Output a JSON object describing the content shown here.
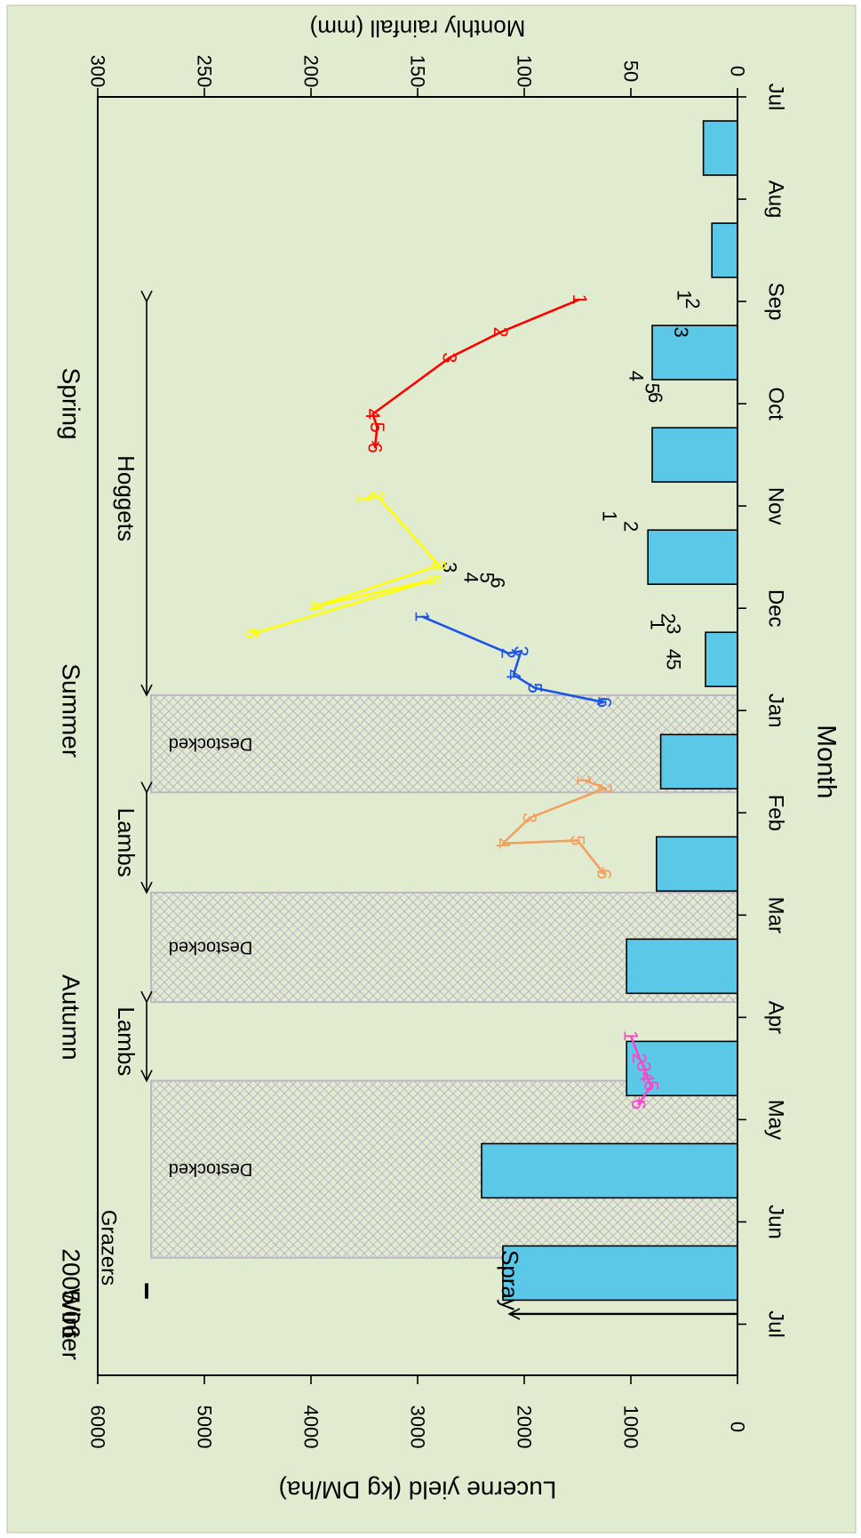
{
  "chart_data": {
    "type": "bar",
    "orientation": "rotated-90-clockwise",
    "title": "2005/06",
    "xlabel": "Month",
    "ylabel_left": "Lucerne yield (kg DM/ha)",
    "ylabel_right": "Monthly rainfall (mm)",
    "x_tick_labels": [
      "Jul",
      "Aug",
      "Sep",
      "Oct",
      "Nov",
      "Dec",
      "Jan",
      "Feb",
      "Mar",
      "Apr",
      "May",
      "Jun",
      "Jul"
    ],
    "yield_ticks": [
      0,
      1000,
      2000,
      3000,
      4000,
      5000,
      6000
    ],
    "rain_ticks": [
      0,
      50,
      100,
      150,
      200,
      250,
      300
    ],
    "yield_range": [
      0,
      6000
    ],
    "rain_range": [
      0,
      300
    ],
    "seasons": [
      {
        "label": "Spring",
        "x": 3.0
      },
      {
        "label": "Summer",
        "x": 6.0
      },
      {
        "label": "Autumn",
        "x": 9.0
      },
      {
        "label": "Winter",
        "x": 12.0
      }
    ],
    "rainfall": {
      "months": [
        0,
        1,
        2,
        3,
        4,
        5,
        6,
        7,
        8,
        9,
        10,
        11
      ],
      "values": [
        16,
        12,
        40,
        40,
        42,
        15,
        36,
        38,
        52,
        52,
        120,
        110
      ],
      "color": "#5bc8e8"
    },
    "destocked": [
      {
        "start": 5.85,
        "end": 6.8,
        "label": "Destocked"
      },
      {
        "start": 7.78,
        "end": 8.85,
        "label": "Destocked"
      },
      {
        "start": 9.62,
        "end": 11.35,
        "label": "Destocked"
      }
    ],
    "grazing_periods": [
      {
        "label": "Hoggets",
        "start": 2.0,
        "end": 5.85
      },
      {
        "label": "Lambs",
        "start": 6.8,
        "end": 7.78
      },
      {
        "label": "Lambs",
        "start": 8.85,
        "end": 9.62
      },
      {
        "label": "Grazers",
        "start": 11.6,
        "end": 11.75
      }
    ],
    "spray": {
      "label": "Spray",
      "x": 11.9,
      "rain_top": 107
    },
    "series": [
      {
        "color": "#000000",
        "points": [
          {
            "n": "1",
            "x": 1.94,
            "y": 500
          },
          {
            "n": "2",
            "x": 2.02,
            "y": 420
          },
          {
            "n": "3",
            "x": 2.3,
            "y": 530
          },
          {
            "n": "4",
            "x": 2.73,
            "y": 950
          },
          {
            "n": "5",
            "x": 2.85,
            "y": 800
          },
          {
            "n": "6",
            "x": 2.94,
            "y": 770
          }
        ]
      },
      {
        "color": "#000000",
        "points": [
          {
            "n": "1",
            "x": 4.1,
            "y": 1200
          },
          {
            "n": "2",
            "x": 4.2,
            "y": 1000
          },
          {
            "n": "3",
            "x": 4.6,
            "y": 2700
          },
          {
            "n": "4",
            "x": 4.7,
            "y": 2500
          },
          {
            "n": "5",
            "x": 4.7,
            "y": 2350
          },
          {
            "n": "6",
            "x": 4.75,
            "y": 2250
          }
        ]
      },
      {
        "color": "#000000",
        "points": [
          {
            "n": "1",
            "x": 5.16,
            "y": 750
          },
          {
            "n": "2",
            "x": 5.1,
            "y": 650
          },
          {
            "n": "3",
            "x": 5.2,
            "y": 600
          },
          {
            "n": "4",
            "x": 5.45,
            "y": 600
          },
          {
            "n": "5",
            "x": 5.55,
            "y": 600
          }
        ]
      },
      {
        "color": "#ff0000",
        "arrow": true,
        "points": [
          {
            "n": "1",
            "x": 1.98,
            "y": 1480
          },
          {
            "n": "2",
            "x": 2.3,
            "y": 2220
          },
          {
            "n": "3",
            "x": 2.55,
            "y": 2700
          },
          {
            "n": "4",
            "x": 3.1,
            "y": 3420
          },
          {
            "n": "5",
            "x": 3.23,
            "y": 3380
          },
          {
            "n": "6",
            "x": 3.43,
            "y": 3400
          }
        ]
      },
      {
        "color": "#ffff00",
        "arrow": true,
        "points": [
          {
            "n": "1",
            "x": 3.93,
            "y": 3500
          },
          {
            "n": "2",
            "x": 3.9,
            "y": 3380
          },
          {
            "n": "3",
            "x": 4.58,
            "y": 2800
          },
          {
            "n": "4",
            "x": 4.98,
            "y": 3950
          },
          {
            "n": "5",
            "x": 4.72,
            "y": 2850
          },
          {
            "n": "6",
            "x": 5.25,
            "y": 4550
          }
        ]
      },
      {
        "color": "#1a55e8",
        "arrow": true,
        "points": [
          {
            "n": "1",
            "x": 5.08,
            "y": 2960
          },
          {
            "n": "2",
            "x": 5.44,
            "y": 2150
          },
          {
            "n": "3",
            "x": 5.42,
            "y": 2030
          },
          {
            "n": "4",
            "x": 5.65,
            "y": 2100
          },
          {
            "n": "5",
            "x": 5.78,
            "y": 1900
          },
          {
            "n": "6",
            "x": 5.92,
            "y": 1250
          }
        ]
      },
      {
        "color": "#f2a060",
        "arrow": true,
        "points": [
          {
            "n": "1",
            "x": 6.68,
            "y": 1440
          },
          {
            "n": "2",
            "x": 6.76,
            "y": 1240
          },
          {
            "n": "3",
            "x": 7.05,
            "y": 1950
          },
          {
            "n": "4",
            "x": 7.3,
            "y": 2200
          },
          {
            "n": "5",
            "x": 7.27,
            "y": 1500
          },
          {
            "n": "6",
            "x": 7.6,
            "y": 1250
          }
        ]
      },
      {
        "color": "#ff44cc",
        "arrow": true,
        "points": [
          {
            "n": "1",
            "x": 9.18,
            "y": 1000
          },
          {
            "n": "2",
            "x": 9.4,
            "y": 920
          },
          {
            "n": "3",
            "x": 9.48,
            "y": 880
          },
          {
            "n": "4",
            "x": 9.58,
            "y": 850
          },
          {
            "n": "5",
            "x": 9.67,
            "y": 810
          },
          {
            "n": "6",
            "x": 9.85,
            "y": 930
          }
        ]
      }
    ]
  }
}
